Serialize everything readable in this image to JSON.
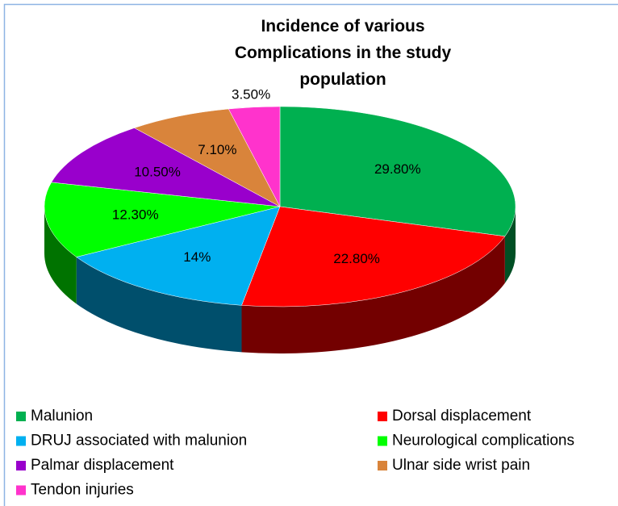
{
  "chart_data": {
    "type": "pie3d",
    "title": "Incidence of various Complications in the study population",
    "categories": [
      "Malunion",
      "Dorsal displacement",
      "DRUJ associated with malunion",
      "Neurological complications",
      "Palmar displacement",
      "Ulnar side wrist pain",
      "Tendon injuries"
    ],
    "values": [
      29.8,
      22.8,
      14,
      12.3,
      10.5,
      7.1,
      3.5
    ],
    "value_labels": [
      "29.80%",
      "22.80%",
      "14%",
      "12.30%",
      "10.50%",
      "7.10%",
      "3.50%"
    ],
    "colors": [
      "#00b050",
      "#ff0000",
      "#00b0f0",
      "#00ff00",
      "#9900cc",
      "#d9843b",
      "#ff33cc"
    ],
    "legend": "bottom"
  }
}
